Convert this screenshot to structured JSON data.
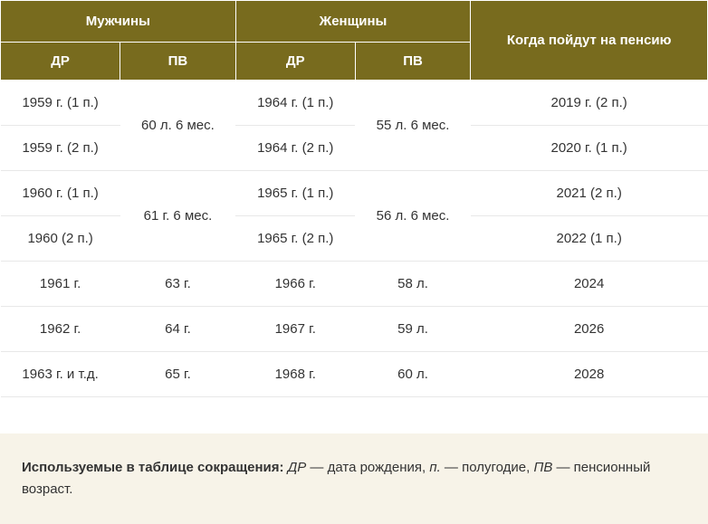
{
  "headers": {
    "men": "Мужчины",
    "women": "Женщины",
    "pension_year": "Когда пойдут на пенсию",
    "dr": "ДР",
    "pv": "ПВ"
  },
  "rows": [
    {
      "men_dr": "1959 г. (1 п.)",
      "men_pv": "60 л. 6 мес.",
      "men_pv_rowspan": 2,
      "women_dr": "1964 г. (1 п.)",
      "women_pv": "55 л. 6 мес.",
      "women_pv_rowspan": 2,
      "pension": "2019 г. (2 п.)"
    },
    {
      "men_dr": "1959 г. (2 п.)",
      "women_dr": "1964 г. (2 п.)",
      "pension": "2020 г. (1 п.)"
    },
    {
      "men_dr": "1960 г. (1 п.)",
      "men_pv": "61 г. 6 мес.",
      "men_pv_rowspan": 2,
      "women_dr": "1965 г. (1 п.)",
      "women_pv": "56 л. 6 мес.",
      "women_pv_rowspan": 2,
      "pension": "2021 (2 п.)"
    },
    {
      "men_dr": "1960 (2 п.)",
      "women_dr": "1965 г. (2 п.)",
      "pension": "2022 (1 п.)"
    },
    {
      "men_dr": "1961 г.",
      "men_pv": "63 г.",
      "women_dr": "1966 г.",
      "women_pv": "58 л.",
      "pension": "2024"
    },
    {
      "men_dr": "1962 г.",
      "men_pv": "64 г.",
      "women_dr": "1967 г.",
      "women_pv": "59 л.",
      "pension": "2026"
    },
    {
      "men_dr": "1963 г. и т.д.",
      "men_pv": "65 г.",
      "women_dr": "1968 г.",
      "women_pv": "60 л.",
      "pension": "2028"
    }
  ],
  "note": {
    "label": "Используемые в таблице сокращения:",
    "dr_abbr": "ДР",
    "dr_text": " — дата рождения, ",
    "p_abbr": "п.",
    "p_text": " — полугодие, ",
    "pv_abbr": "ПВ",
    "pv_text": " — пенсионный возраст."
  }
}
